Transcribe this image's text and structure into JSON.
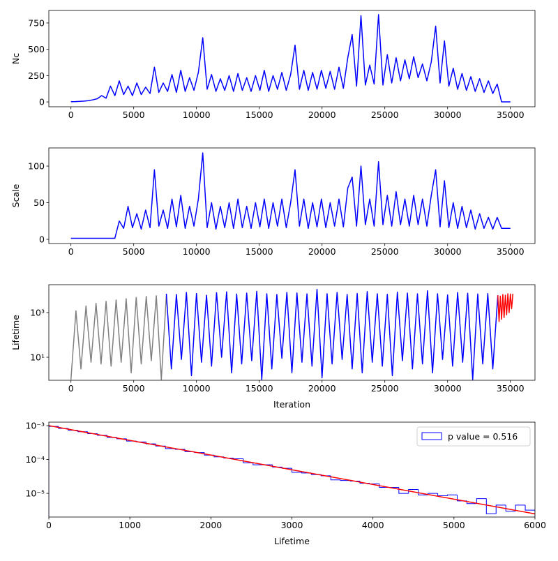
{
  "chart_data": [
    {
      "type": "line",
      "ylabel": "Nc",
      "xlim": [
        -1760,
        36960
      ],
      "ylim": [
        -46,
        869
      ],
      "xticks": [
        0,
        5000,
        10000,
        15000,
        20000,
        25000,
        30000,
        35000
      ],
      "yticks": [
        0,
        250,
        500,
        750
      ],
      "series": [
        {
          "color": "#0000ff",
          "x": [
            0,
            350,
            700,
            1050,
            1400,
            1750,
            2100,
            2450,
            2800,
            3150,
            3500,
            3850,
            4200,
            4550,
            4900,
            5250,
            5600,
            5950,
            6300,
            6650,
            7000,
            7350,
            7700,
            8050,
            8400,
            8750,
            9100,
            9450,
            9800,
            10150,
            10500,
            10850,
            11200,
            11550,
            11900,
            12250,
            12600,
            12950,
            13300,
            13650,
            14000,
            14350,
            14700,
            15050,
            15400,
            15750,
            16100,
            16450,
            16800,
            17150,
            17500,
            17850,
            18200,
            18550,
            18900,
            19250,
            19600,
            19950,
            20300,
            20650,
            21000,
            21350,
            21700,
            22050,
            22400,
            22750,
            23100,
            23450,
            23800,
            24150,
            24500,
            24850,
            25200,
            25550,
            25900,
            26250,
            26600,
            26950,
            27300,
            27650,
            28000,
            28350,
            28700,
            29050,
            29400,
            29750,
            30100,
            30450,
            30800,
            31150,
            31500,
            31850,
            32200,
            32550,
            32900,
            33250,
            33600,
            33950,
            34300,
            34650,
            35000
          ],
          "values": [
            2,
            3,
            5,
            8,
            12,
            20,
            30,
            60,
            35,
            150,
            60,
            200,
            70,
            150,
            60,
            180,
            70,
            140,
            80,
            330,
            90,
            180,
            100,
            260,
            90,
            300,
            100,
            230,
            110,
            280,
            610,
            120,
            260,
            100,
            220,
            110,
            250,
            100,
            270,
            110,
            230,
            100,
            250,
            110,
            300,
            100,
            250,
            120,
            280,
            110,
            260,
            540,
            120,
            300,
            110,
            280,
            120,
            300,
            130,
            290,
            120,
            330,
            130,
            420,
            640,
            150,
            820,
            160,
            350,
            170,
            830,
            160,
            450,
            180,
            420,
            200,
            400,
            220,
            430,
            230,
            360,
            200,
            380,
            720,
            180,
            580,
            150,
            320,
            120,
            270,
            110,
            240,
            100,
            220,
            90,
            200,
            80,
            170,
            0,
            0,
            0
          ]
        }
      ]
    },
    {
      "type": "line",
      "ylabel": "Scale",
      "xlim": [
        -1760,
        36960
      ],
      "ylim": [
        -5.7,
        124.8
      ],
      "xticks": [
        0,
        5000,
        10000,
        15000,
        20000,
        25000,
        30000,
        35000
      ],
      "yticks": [
        0,
        50,
        100
      ],
      "series": [
        {
          "color": "#0000ff",
          "x": [
            0,
            350,
            700,
            1050,
            1400,
            1750,
            2100,
            2450,
            2800,
            3150,
            3500,
            3850,
            4200,
            4550,
            4900,
            5250,
            5600,
            5950,
            6300,
            6650,
            7000,
            7350,
            7700,
            8050,
            8400,
            8750,
            9100,
            9450,
            9800,
            10150,
            10500,
            10850,
            11200,
            11550,
            11900,
            12250,
            12600,
            12950,
            13300,
            13650,
            14000,
            14350,
            14700,
            15050,
            15400,
            15750,
            16100,
            16450,
            16800,
            17150,
            17500,
            17850,
            18200,
            18550,
            18900,
            19250,
            19600,
            19950,
            20300,
            20650,
            21000,
            21350,
            21700,
            22050,
            22400,
            22750,
            23100,
            23450,
            23800,
            24150,
            24500,
            24850,
            25200,
            25550,
            25900,
            26250,
            26600,
            26950,
            27300,
            27650,
            28000,
            28350,
            28700,
            29050,
            29400,
            29750,
            30100,
            30450,
            30800,
            31150,
            31500,
            31850,
            32200,
            32550,
            32900,
            33250,
            33600,
            33950,
            34300,
            34650,
            35000
          ],
          "values": [
            1.5,
            1.5,
            1.5,
            1.5,
            1.5,
            1.5,
            1.5,
            1.5,
            1.5,
            1.5,
            1.5,
            25,
            15,
            45,
            16,
            35,
            14,
            40,
            16,
            95,
            18,
            40,
            15,
            55,
            17,
            60,
            15,
            45,
            18,
            55,
            118,
            16,
            50,
            14,
            45,
            16,
            50,
            15,
            55,
            16,
            45,
            15,
            50,
            17,
            55,
            15,
            50,
            18,
            55,
            16,
            50,
            95,
            18,
            55,
            15,
            50,
            17,
            55,
            16,
            50,
            18,
            55,
            17,
            70,
            85,
            18,
            100,
            20,
            55,
            18,
            106,
            20,
            60,
            18,
            65,
            20,
            55,
            18,
            60,
            20,
            55,
            18,
            60,
            95,
            17,
            80,
            16,
            50,
            15,
            45,
            16,
            40,
            14,
            35,
            15,
            30,
            14,
            30,
            15,
            15,
            15
          ]
        }
      ]
    },
    {
      "type": "line",
      "ylabel": "Lifetime",
      "xlabel": "Iteration",
      "yscale": "log",
      "xlim": [
        -1760,
        36960
      ],
      "ylim": [
        0.93,
        17800
      ],
      "xticks": [
        0,
        5000,
        10000,
        15000,
        20000,
        25000,
        30000,
        35000
      ],
      "yticks": [
        {
          "value": 10,
          "label": "10¹"
        },
        {
          "value": 1000,
          "label": "10³"
        }
      ],
      "series": [
        {
          "color": "#808080",
          "x": [
            0,
            400,
            800,
            1200,
            1600,
            2000,
            2400,
            2800,
            3200,
            3600,
            4000,
            4400,
            4800,
            5200,
            5600,
            6000,
            6400,
            6800,
            7200,
            7600
          ],
          "values": [
            1,
            1200,
            3,
            2000,
            6,
            2600,
            5,
            3200,
            4,
            3700,
            6,
            4200,
            2,
            4800,
            5,
            5300,
            7,
            5700,
            1,
            6000
          ]
        },
        {
          "color": "#0000ff",
          "x": [
            7600,
            8000,
            8400,
            8800,
            9200,
            9600,
            10000,
            10400,
            10800,
            11200,
            11600,
            12000,
            12400,
            12800,
            13200,
            13600,
            14000,
            14400,
            14800,
            15200,
            15600,
            16000,
            16400,
            16800,
            17200,
            17600,
            18000,
            18400,
            18800,
            19200,
            19600,
            20000,
            20400,
            20800,
            21200,
            21600,
            22000,
            22400,
            22800,
            23200,
            23600,
            24000,
            24400,
            24800,
            25200,
            25600,
            26000,
            26400,
            26800,
            27200,
            27600,
            28000,
            28400,
            28800,
            29200,
            29600,
            30000,
            30400,
            30800,
            31200,
            31600,
            32000,
            32400,
            32800,
            33200,
            33600,
            34000
          ],
          "values": [
            7000,
            3,
            6500,
            8,
            8000,
            1.5,
            7200,
            6,
            6000,
            4,
            7800,
            10,
            8500,
            2,
            6800,
            5,
            7500,
            7,
            9000,
            1,
            7000,
            3,
            6500,
            9,
            8000,
            2,
            7600,
            6,
            6900,
            4,
            11000,
            1.2,
            7000,
            5,
            8000,
            8,
            6500,
            3,
            7200,
            2,
            8800,
            6,
            7000,
            4,
            6600,
            1.5,
            8200,
            7,
            7500,
            3,
            6900,
            5,
            9500,
            2,
            7000,
            8,
            6200,
            4,
            8000,
            6,
            7400,
            1,
            6800,
            5,
            7100,
            3,
            6000
          ]
        },
        {
          "color": "#ff0000",
          "x": [
            34000,
            34100,
            34200,
            34300,
            34400,
            34500,
            34600,
            34700,
            34800,
            34900,
            35000,
            35100,
            35200
          ],
          "values": [
            6000,
            400,
            5500,
            500,
            6500,
            600,
            6000,
            800,
            7000,
            1000,
            6800,
            1500,
            7000
          ]
        }
      ]
    },
    {
      "type": "histogram",
      "xlabel": "Lifetime",
      "yscale": "log",
      "xlim": [
        0,
        6000
      ],
      "ylim": [
        2e-06,
        0.00127
      ],
      "xticks": [
        0,
        1000,
        2000,
        3000,
        4000,
        5000,
        6000
      ],
      "yticks": [
        {
          "value": 1e-05,
          "label": "10⁻⁵"
        },
        {
          "value": 0.0001,
          "label": "10⁻⁴"
        },
        {
          "value": 0.001,
          "label": "10⁻³"
        }
      ],
      "name": "p value = 0.516",
      "legend": "upper right",
      "color": "#0000ff",
      "bins": [
        0,
        120,
        240,
        360,
        480,
        600,
        720,
        840,
        960,
        1080,
        1200,
        1320,
        1440,
        1560,
        1680,
        1800,
        1920,
        2040,
        2160,
        2280,
        2400,
        2520,
        2640,
        2760,
        2880,
        3000,
        3120,
        3240,
        3360,
        3480,
        3600,
        3720,
        3840,
        3960,
        4080,
        4200,
        4320,
        4440,
        4560,
        4680,
        4800,
        4920,
        5040,
        5160,
        5280,
        5400,
        5520,
        5640,
        5760,
        5880,
        6000
      ],
      "values": [
        0.00095,
        0.00083,
        0.00073,
        0.00066,
        0.00058,
        0.00052,
        0.00045,
        0.00041,
        0.00035,
        0.00033,
        0.00029,
        0.00025,
        0.00021,
        0.0002,
        0.00017,
        0.00016,
        0.000135,
        0.00012,
        0.00011,
        0.000105,
        8e-05,
        7e-05,
        7e-05,
        6e-05,
        5.5e-05,
        4.2e-05,
        4e-05,
        3.6e-05,
        3.3e-05,
        2.5e-05,
        2.4e-05,
        2.3e-05,
        2e-05,
        1.9e-05,
        1.5e-05,
        1.5e-05,
        1e-05,
        1.3e-05,
        9e-06,
        1e-05,
        8.5e-06,
        9e-06,
        6e-06,
        5e-06,
        7e-06,
        2.5e-06,
        4.5e-06,
        3e-06,
        4.5e-06,
        3.2e-06
      ],
      "fit": {
        "color": "#ff0000",
        "x": [
          0,
          6000
        ],
        "values": [
          0.001,
          2.48e-06
        ]
      }
    }
  ]
}
